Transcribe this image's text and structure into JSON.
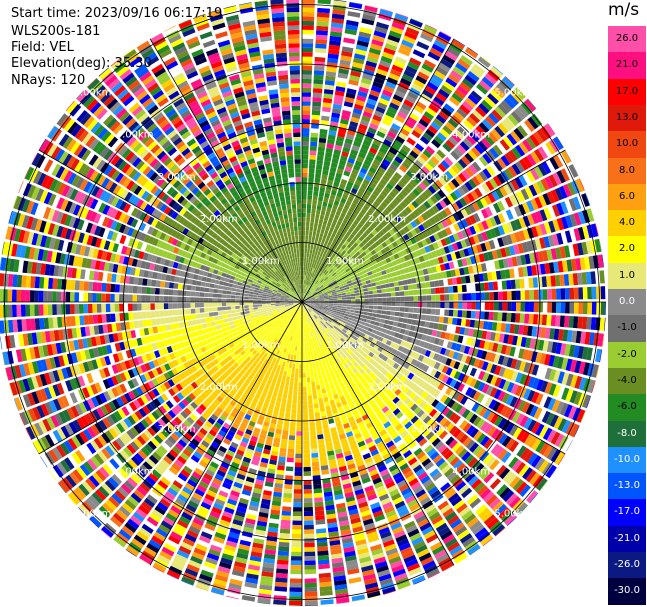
{
  "header": {
    "start_time": "Start time: 2023/09/16 06:17:19",
    "instrument": "WLS200s-181",
    "field": "Field: VEL",
    "elevation": "Elevation(deg): 35.30",
    "nrays": "NRays: 120"
  },
  "chart_data": {
    "type": "heatmap",
    "projection": "polar PPI",
    "unit": "m/s",
    "rays": 120,
    "range_rings_km": [
      1,
      2,
      3,
      4,
      5
    ],
    "range_labels": [
      "1.00km",
      "2.00km",
      "3.00km",
      "4.00km",
      "5.00km"
    ],
    "colorbar": {
      "ticks": [
        "26.0",
        "21.0",
        "17.0",
        "13.0",
        "10.0",
        "8.0",
        "6.0",
        "4.0",
        "2.0",
        "1.0",
        "0.0",
        "-1.0",
        "-2.0",
        "-4.0",
        "-6.0",
        "-8.0",
        "-10.0",
        "-13.0",
        "-17.0",
        "-21.0",
        "-26.0",
        "-30.0"
      ],
      "colors": [
        "#ff4fa8",
        "#ff0f7f",
        "#ff0000",
        "#e01a0a",
        "#f04810",
        "#f87018",
        "#ffa010",
        "#ffd000",
        "#ffff00",
        "#e8e878",
        "#8a8a8a",
        "#707070",
        "#9acd32",
        "#6b8e23",
        "#228b22",
        "#1f6f3a",
        "#1e90ff",
        "#0055ff",
        "#0000ff",
        "#0000aa",
        "#0a1a80",
        "#000040"
      ]
    }
  }
}
